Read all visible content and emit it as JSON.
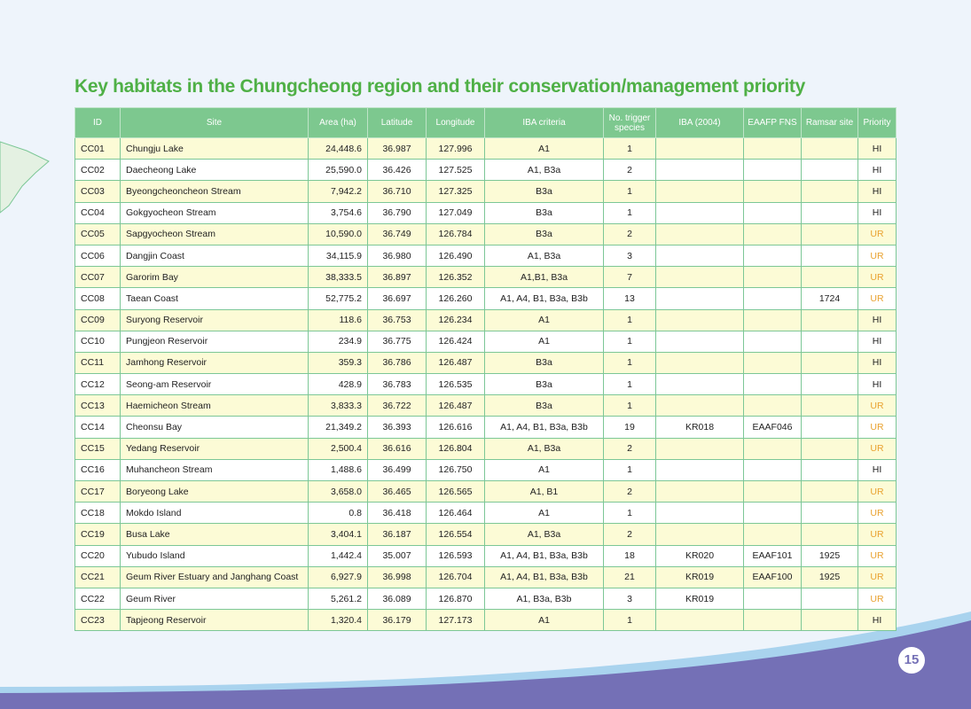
{
  "title": "Key habitats in the Chungcheong region and their conservation/management priority",
  "page_number": "15",
  "table": {
    "headers": [
      "ID",
      "Site",
      "Area (ha)",
      "Latitude",
      "Longitude",
      "IBA criteria",
      "No. trigger species",
      "IBA (2004)",
      "EAAFP FNS",
      "Ramsar site",
      "Priority"
    ],
    "rows": [
      [
        "CC01",
        "Chungju Lake",
        "24,448.6",
        "36.987",
        "127.996",
        "A1",
        "1",
        null,
        null,
        null,
        "HI"
      ],
      [
        "CC02",
        "Daecheong Lake",
        "25,590.0",
        "36.426",
        "127.525",
        "A1, B3a",
        "2",
        null,
        null,
        null,
        "HI"
      ],
      [
        "CC03",
        "Byeongcheoncheon Stream",
        "7,942.2",
        "36.710",
        "127.325",
        "B3a",
        "1",
        null,
        null,
        null,
        "HI"
      ],
      [
        "CC04",
        "Gokgyocheon Stream",
        "3,754.6",
        "36.790",
        "127.049",
        "B3a",
        "1",
        null,
        null,
        null,
        "HI"
      ],
      [
        "CC05",
        "Sapgyocheon Stream",
        "10,590.0",
        "36.749",
        "126.784",
        "B3a",
        "2",
        null,
        null,
        null,
        "UR"
      ],
      [
        "CC06",
        "Dangjin Coast",
        "34,115.9",
        "36.980",
        "126.490",
        "A1, B3a",
        "3",
        null,
        null,
        null,
        "UR"
      ],
      [
        "CC07",
        "Garorim Bay",
        "38,333.5",
        "36.897",
        "126.352",
        "A1,B1, B3a",
        "7",
        null,
        null,
        null,
        "UR"
      ],
      [
        "CC08",
        "Taean Coast",
        "52,775.2",
        "36.697",
        "126.260",
        "A1, A4, B1, B3a, B3b",
        "13",
        null,
        null,
        "1724",
        "UR"
      ],
      [
        "CC09",
        "Suryong Reservoir",
        "118.6",
        "36.753",
        "126.234",
        "A1",
        "1",
        null,
        null,
        null,
        "HI"
      ],
      [
        "CC10",
        "Pungjeon Reservoir",
        "234.9",
        "36.775",
        "126.424",
        "A1",
        "1",
        null,
        null,
        null,
        "HI"
      ],
      [
        "CC11",
        "Jamhong Reservoir",
        "359.3",
        "36.786",
        "126.487",
        "B3a",
        "1",
        null,
        null,
        null,
        "HI"
      ],
      [
        "CC12",
        "Seong-am Reservoir",
        "428.9",
        "36.783",
        "126.535",
        "B3a",
        "1",
        null,
        null,
        null,
        "HI"
      ],
      [
        "CC13",
        "Haemicheon Stream",
        "3,833.3",
        "36.722",
        "126.487",
        "B3a",
        "1",
        null,
        null,
        null,
        "UR"
      ],
      [
        "CC14",
        "Cheonsu Bay",
        "21,349.2",
        "36.393",
        "126.616",
        "A1, A4, B1, B3a, B3b",
        "19",
        "KR018",
        "EAAF046",
        null,
        "UR"
      ],
      [
        "CC15",
        "Yedang Reservoir",
        "2,500.4",
        "36.616",
        "126.804",
        "A1, B3a",
        "2",
        null,
        null,
        null,
        "UR"
      ],
      [
        "CC16",
        "Muhancheon Stream",
        "1,488.6",
        "36.499",
        "126.750",
        "A1",
        "1",
        null,
        null,
        null,
        "HI"
      ],
      [
        "CC17",
        "Boryeong Lake",
        "3,658.0",
        "36.465",
        "126.565",
        "A1, B1",
        "2",
        null,
        null,
        null,
        "UR"
      ],
      [
        "CC18",
        "Mokdo Island",
        "0.8",
        "36.418",
        "126.464",
        "A1",
        "1",
        null,
        null,
        null,
        "UR"
      ],
      [
        "CC19",
        "Busa Lake",
        "3,404.1",
        "36.187",
        "126.554",
        "A1, B3a",
        "2",
        null,
        null,
        null,
        "UR"
      ],
      [
        "CC20",
        "Yubudo Island",
        "1,442.4",
        "35.007",
        "126.593",
        "A1, A4, B1, B3a, B3b",
        "18",
        "KR020",
        "EAAF101",
        "1925",
        "UR"
      ],
      [
        "CC21",
        "Geum River Estuary and Janghang Coast",
        "6,927.9",
        "36.998",
        "126.704",
        "A1, A4, B1, B3a, B3b",
        "21",
        "KR019",
        "EAAF100",
        "1925",
        "UR"
      ],
      [
        "CC22",
        "Geum River",
        "5,261.2",
        "36.089",
        "126.870",
        "A1, B3a, B3b",
        "3",
        "KR019",
        null,
        null,
        "UR"
      ],
      [
        "CC23",
        "Tapjeong Reservoir",
        "1,320.4",
        "36.179",
        "127.173",
        "A1",
        "1",
        null,
        null,
        null,
        "HI"
      ]
    ]
  }
}
